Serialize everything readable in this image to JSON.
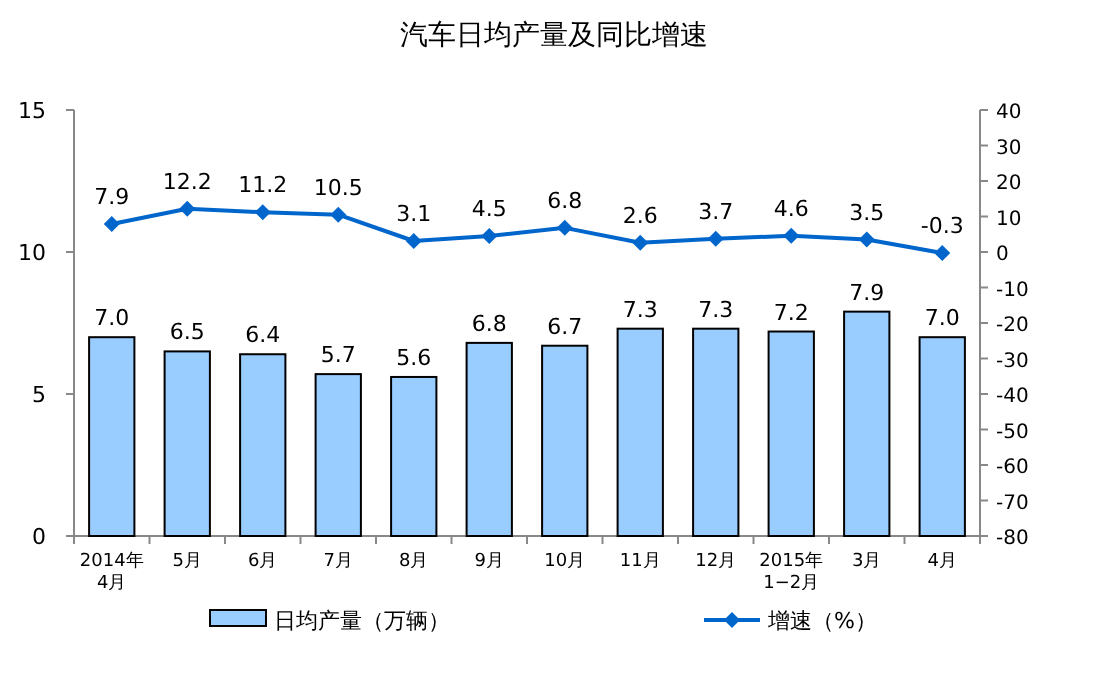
{
  "chart_data": {
    "type": "bar",
    "title": "汽车日均产量及同比增速",
    "categories": [
      "2014年\n4月",
      "5月",
      "6月",
      "7月",
      "8月",
      "9月",
      "10月",
      "11月",
      "12月",
      "2015年\n1−2月",
      "3月",
      "4月"
    ],
    "series": [
      {
        "name": "日均产量（万辆）",
        "color": "#99ccff",
        "values": [
          7.0,
          6.5,
          6.4,
          5.7,
          5.6,
          6.8,
          6.7,
          7.3,
          7.3,
          7.2,
          7.9,
          7.0
        ],
        "value_labels": [
          "7.0",
          "6.5",
          "6.4",
          "5.7",
          "5.6",
          "6.8",
          "6.7",
          "7.3",
          "7.3",
          "7.2",
          "7.9",
          "7.0"
        ]
      },
      {
        "name": "增速（%）",
        "type": "line",
        "axis": "y2",
        "color": "#0066cc",
        "marker": "diamond",
        "values": [
          7.9,
          12.2,
          11.2,
          10.5,
          3.1,
          4.5,
          6.8,
          2.6,
          3.7,
          4.6,
          3.5,
          -0.3
        ],
        "value_labels": [
          "7.9",
          "12.2",
          "11.2",
          "10.5",
          "3.1",
          "4.5",
          "6.8",
          "2.6",
          "3.7",
          "4.6",
          "3.5",
          "-0.3"
        ]
      }
    ],
    "ylim": [
      0,
      15
    ],
    "yticks": [
      0,
      5,
      10,
      15
    ],
    "y2lim": [
      -80,
      40
    ],
    "y2ticks": [
      -80,
      -70,
      -60,
      -50,
      -40,
      -30,
      -20,
      -10,
      0,
      10,
      20,
      30,
      40
    ],
    "legend": "bottom",
    "grid": false
  }
}
